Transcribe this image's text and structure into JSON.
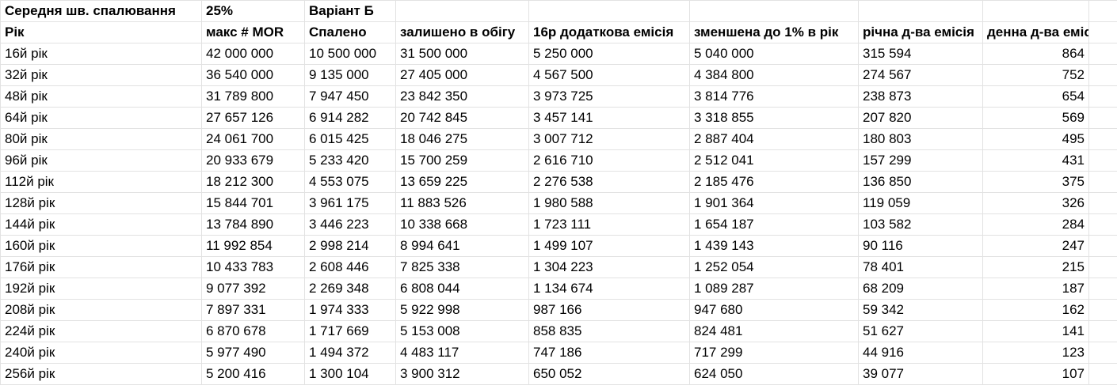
{
  "sheet": {
    "header_row_1": [
      "Середня шв. спалювання",
      "25%",
      "Варіант Б",
      "",
      "",
      "",
      "",
      "",
      ""
    ],
    "header_row_2": [
      "Рік",
      "макс # MOR",
      "Спалено",
      "залишено в обігу",
      "16р додаткова емісія",
      "зменшена до 1% в рік",
      "річна д-ва емісія",
      "денна д-ва емісія",
      ""
    ],
    "rows": [
      [
        "16й рік",
        "42 000 000",
        "10 500 000",
        "31 500 000",
        "5 250 000",
        "5 040 000",
        "315 594",
        "864"
      ],
      [
        "32й рік",
        "36 540 000",
        "9 135 000",
        "27 405 000",
        "4 567 500",
        "4 384 800",
        "274 567",
        "752"
      ],
      [
        "48й рік",
        "31 789 800",
        "7 947 450",
        "23 842 350",
        "3 973 725",
        "3 814 776",
        "238 873",
        "654"
      ],
      [
        "64й рік",
        "27 657 126",
        "6 914 282",
        "20 742 845",
        "3 457 141",
        "3 318 855",
        "207 820",
        "569"
      ],
      [
        "80й рік",
        "24 061 700",
        "6 015 425",
        "18 046 275",
        "3 007 712",
        "2 887 404",
        "180 803",
        "495"
      ],
      [
        "96й рік",
        "20 933 679",
        "5 233 420",
        "15 700 259",
        "2 616 710",
        "2 512 041",
        "157 299",
        "431"
      ],
      [
        "112й рік",
        "18 212 300",
        "4 553 075",
        "13 659 225",
        "2 276 538",
        "2 185 476",
        "136 850",
        "375"
      ],
      [
        "128й рік",
        "15 844 701",
        "3 961 175",
        "11 883 526",
        "1 980 588",
        "1 901 364",
        "119 059",
        "326"
      ],
      [
        "144й рік",
        "13 784 890",
        "3 446 223",
        "10 338 668",
        "1 723 111",
        "1 654 187",
        "103 582",
        "284"
      ],
      [
        "160й рік",
        "11 992 854",
        "2 998 214",
        "8 994 641",
        "1 499 107",
        "1 439 143",
        "90 116",
        "247"
      ],
      [
        "176й рік",
        "10 433 783",
        "2 608 446",
        "7 825 338",
        "1 304 223",
        "1 252 054",
        "78 401",
        "215"
      ],
      [
        "192й рік",
        "9 077 392",
        "2 269 348",
        "6 808 044",
        "1 134 674",
        "1 089 287",
        "68 209",
        "187"
      ],
      [
        "208й рік",
        "7 897 331",
        "1 974 333",
        "5 922 998",
        "987 166",
        "947 680",
        "59 342",
        "162"
      ],
      [
        "224й рік",
        "6 870 678",
        "1 717 669",
        "5 153 008",
        "858 835",
        "824 481",
        "51 627",
        "141"
      ],
      [
        "240й рік",
        "5 977 490",
        "1 494 372",
        "4 483 117",
        "747 186",
        "717 299",
        "44 916",
        "123"
      ],
      [
        "256й рік",
        "5 200 416",
        "1 300 104",
        "3 900 312",
        "650 052",
        "624 050",
        "39 077",
        "107"
      ]
    ]
  }
}
